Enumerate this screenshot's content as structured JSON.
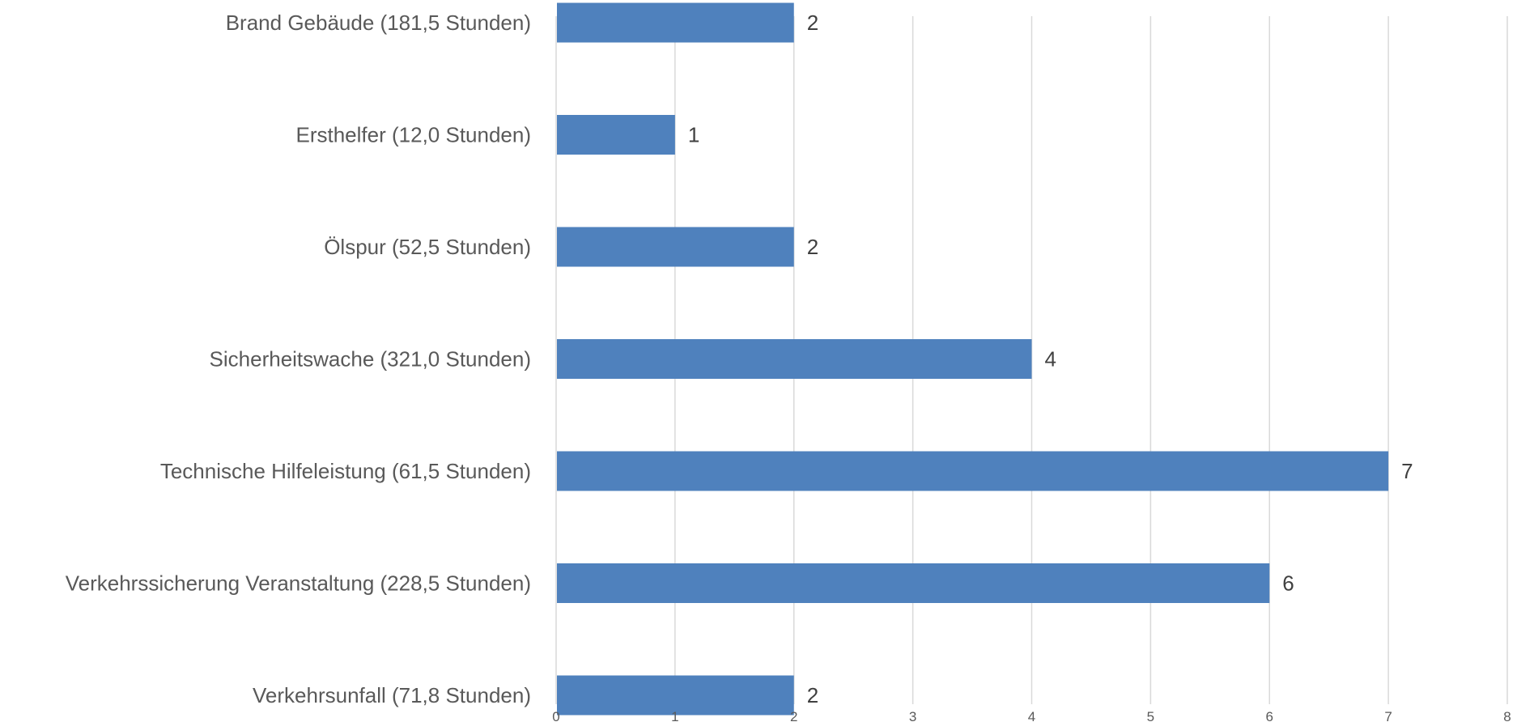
{
  "chart_data": {
    "type": "bar",
    "orientation": "horizontal",
    "categories": [
      "Brand Gebäude (181,5 Stunden)",
      "Ersthelfer (12,0 Stunden)",
      "Ölspur (52,5 Stunden)",
      "Sicherheitswache (321,0 Stunden)",
      "Technische Hilfeleistung (61,5 Stunden)",
      "Verkehrssicherung Veranstaltung (228,5 Stunden)",
      "Verkehrsunfall (71,8 Stunden)"
    ],
    "values": [
      2,
      1,
      2,
      4,
      7,
      6,
      2
    ],
    "data_labels": [
      "2",
      "1",
      "2",
      "4",
      "7",
      "6",
      "2"
    ],
    "xlim": [
      0,
      8
    ],
    "x_ticks": [
      "0",
      "1",
      "2",
      "3",
      "4",
      "5",
      "6",
      "7",
      "8"
    ],
    "grid": true,
    "legend": "none",
    "colors": {
      "bar": "#4f81bd",
      "grid": "#d9d9d9",
      "category_text": "#595959",
      "value_text": "#404040",
      "tick_text": "#595959"
    }
  }
}
